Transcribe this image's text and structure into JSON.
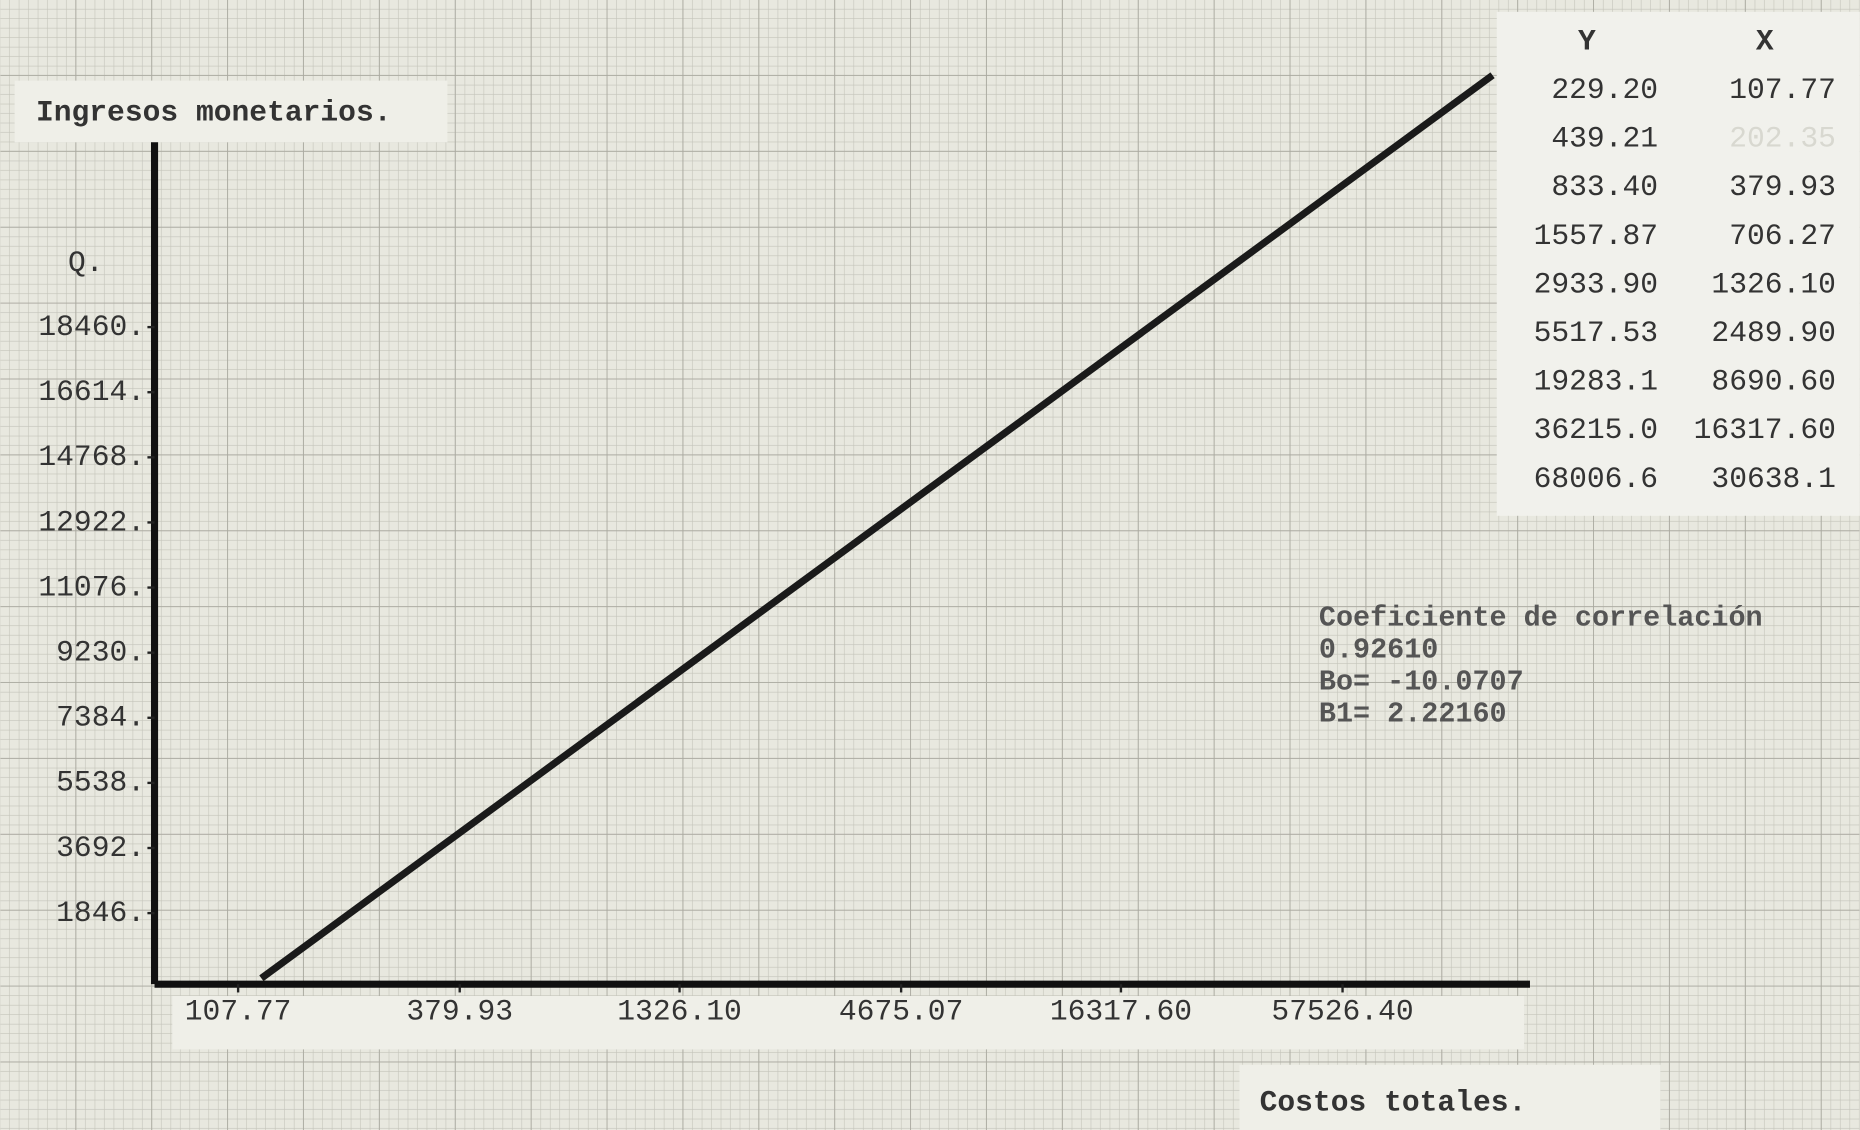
{
  "chart_data": {
    "type": "line",
    "title": "Ingresos monetarios.",
    "y_label": "Q.",
    "x_label": "Costos totales.",
    "log_x": true,
    "xlim": [
      67,
      167000
    ],
    "ylim": [
      0,
      23700
    ],
    "xticks": [
      107.77,
      379.93,
      {
        "value": 1326.1,
        "label": "1326.10"
      },
      4675.07,
      {
        "value": 16317.6,
        "label": "16317.60"
      },
      {
        "value": 57526.4,
        "label": "57526.40"
      }
    ],
    "yticks": [
      {
        "value": 1846,
        "label": "1846."
      },
      {
        "value": 3692,
        "label": "3692."
      },
      {
        "value": 5538,
        "label": "5538."
      },
      {
        "value": 7384,
        "label": "7384."
      },
      {
        "value": 9230,
        "label": "9230."
      },
      {
        "value": 11076,
        "label": "11076."
      },
      {
        "value": 12922,
        "label": "12922."
      },
      {
        "value": 14768,
        "label": "14768."
      },
      {
        "value": 16614,
        "label": "16614."
      },
      {
        "value": 18460,
        "label": "18460."
      }
    ],
    "series": [
      {
        "color": "#1a1a1a",
        "x": [
          123,
          135000
        ],
        "values": [
          0,
          25600
        ]
      }
    ],
    "table": {
      "columns": [
        "Y",
        "X"
      ],
      "rows": [
        [
          "229.20",
          "107.77"
        ],
        [
          "439.21",
          "202.35"
        ],
        [
          "833.40",
          "379.93"
        ],
        [
          "1557.87",
          "706.27"
        ],
        [
          "2933.90",
          "1326.10"
        ],
        [
          "5517.53",
          "2489.90"
        ],
        [
          "19283.1",
          "8690.60"
        ],
        [
          "36215.0",
          "16317.60"
        ],
        [
          "68006.6",
          "30638.1"
        ]
      ]
    },
    "annotations": [
      "Coeficiente de correlación",
      "0.92610",
      "Bo= -10.0707",
      "B1=  2.22160"
    ]
  }
}
